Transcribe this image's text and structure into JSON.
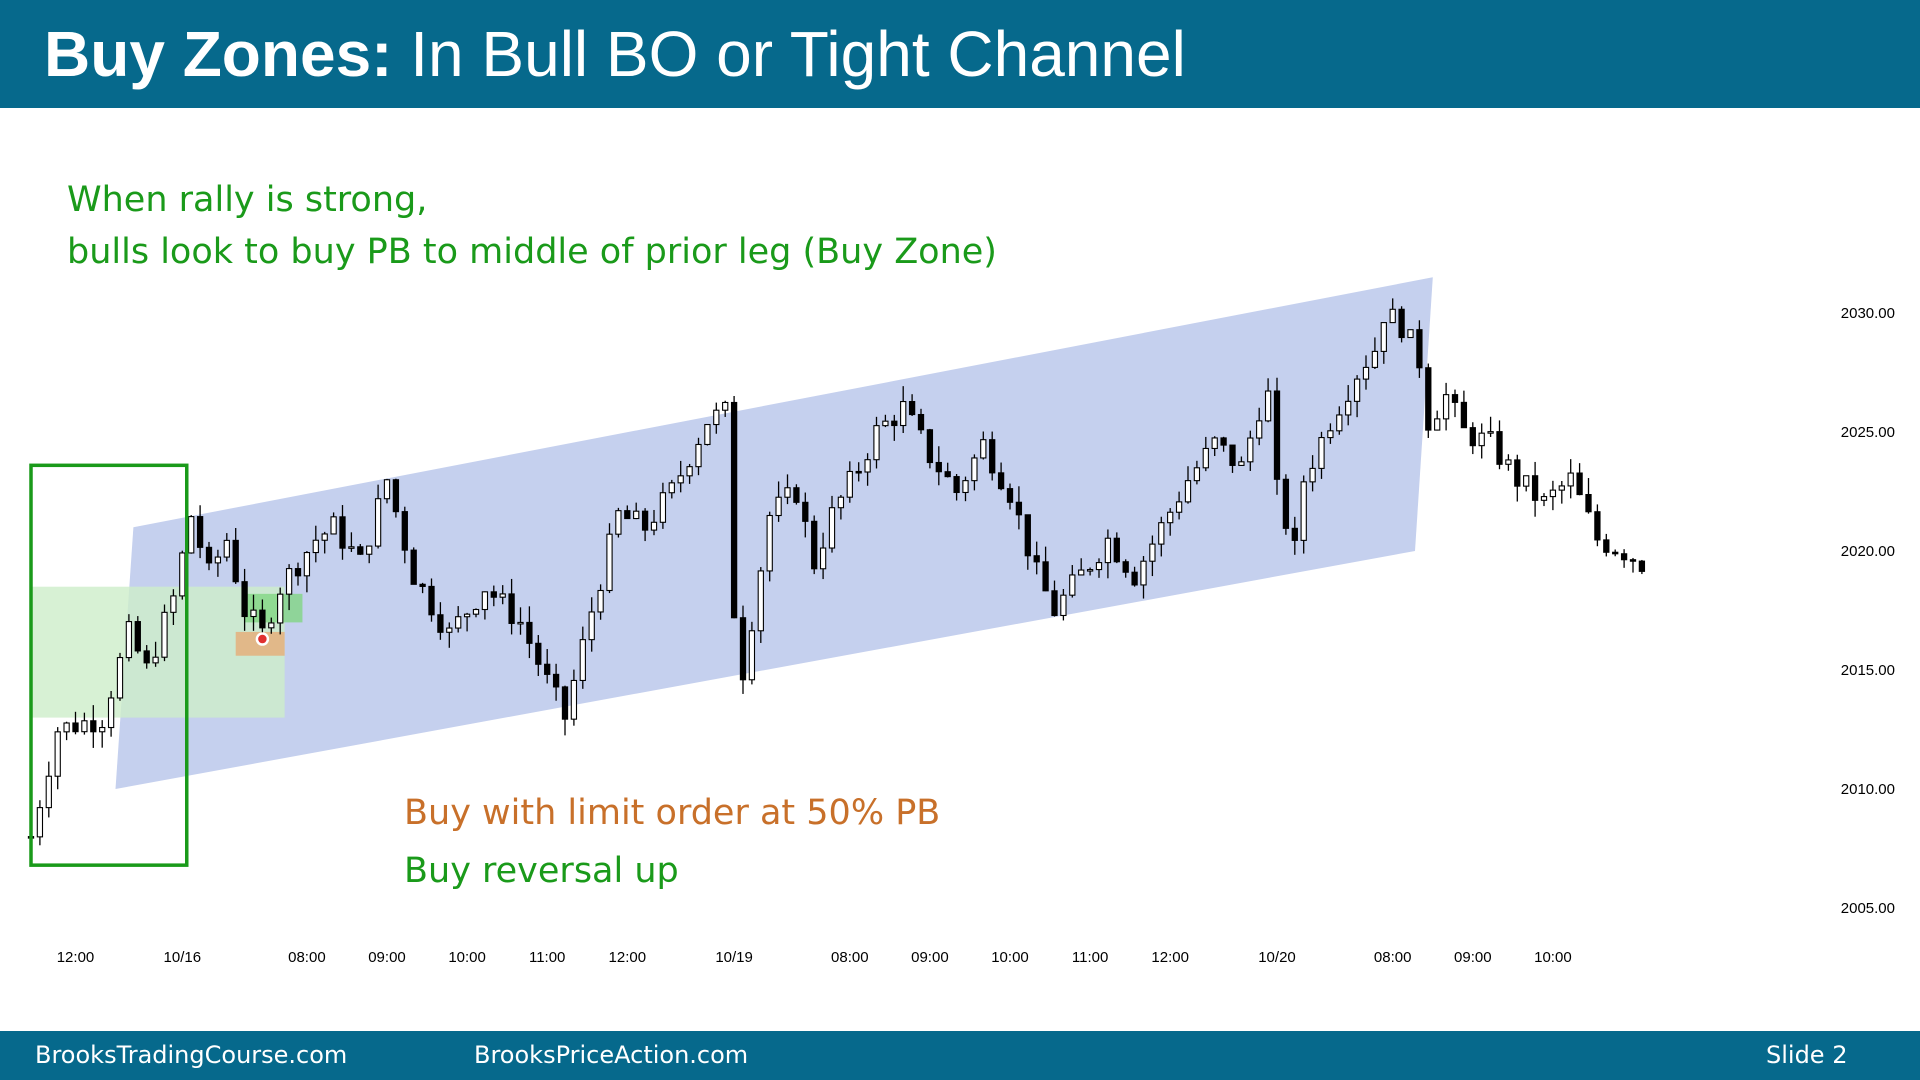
{
  "slide": {
    "title_bold": "Buy Zones:",
    "title_rest": " In Bull BO or Tight Channel",
    "note_line1": "When rally is strong,",
    "note_line2": "bulls look to buy PB to middle of prior leg (Buy Zone)",
    "note_buy_limit": "Buy with limit order at 50% PB",
    "note_buy_reversal": "Buy reversal up",
    "footer_left": "BrooksTradingCourse.com",
    "footer_center": "BrooksPriceAction.com",
    "footer_right": "Slide  2",
    "colors": {
      "header_bg": "#06698c",
      "green_text": "#1a9a1a",
      "orange_text": "#c8702a",
      "channel_fill": "#c5d0ee",
      "buy_zone_fill": "#cdeec9",
      "box_stroke": "#1a9a1a",
      "signal_fill": "#e8a870"
    }
  },
  "chart_data": {
    "type": "candlestick",
    "title": "",
    "xlabel": "",
    "ylabel": "",
    "ylim": [
      2003.2,
      2033.8
    ],
    "yticks": [
      2005,
      2010,
      2015,
      2020,
      2025,
      2030
    ],
    "ytick_labels": [
      "2005.00",
      "2010.00",
      "2015.00",
      "2020.00",
      "2025.00",
      "2030.00"
    ],
    "xticks": [
      {
        "label": "12:00",
        "bar": 5
      },
      {
        "label": "10/16",
        "bar": 17
      },
      {
        "label": "08:00",
        "bar": 31
      },
      {
        "label": "09:00",
        "bar": 40
      },
      {
        "label": "10:00",
        "bar": 49
      },
      {
        "label": "11:00",
        "bar": 58
      },
      {
        "label": "12:00",
        "bar": 67
      },
      {
        "label": "10/19",
        "bar": 79
      },
      {
        "label": "08:00",
        "bar": 92
      },
      {
        "label": "09:00",
        "bar": 101
      },
      {
        "label": "10:00",
        "bar": 110
      },
      {
        "label": "11:00",
        "bar": 119
      },
      {
        "label": "12:00",
        "bar": 128
      },
      {
        "label": "10/20",
        "bar": 140
      },
      {
        "label": "08:00",
        "bar": 153
      },
      {
        "label": "09:00",
        "bar": 162
      },
      {
        "label": "10:00",
        "bar": 171
      }
    ],
    "price_path": [
      [
        0,
        2008.0
      ],
      [
        3,
        2012.5
      ],
      [
        8,
        2013.0
      ],
      [
        11,
        2016.5
      ],
      [
        13,
        2015.0
      ],
      [
        16,
        2018.0
      ],
      [
        18,
        2021.5
      ],
      [
        20,
        2019.0
      ],
      [
        22,
        2020.5
      ],
      [
        24,
        2017.5
      ],
      [
        26,
        2016.5
      ],
      [
        28,
        2018.5
      ],
      [
        32,
        2020.5
      ],
      [
        34,
        2021.0
      ],
      [
        37,
        2019.5
      ],
      [
        40,
        2023.0
      ],
      [
        43,
        2019.0
      ],
      [
        47,
        2016.5
      ],
      [
        51,
        2018.5
      ],
      [
        55,
        2017.0
      ],
      [
        58,
        2014.5
      ],
      [
        60,
        2013.0
      ],
      [
        63,
        2017.5
      ],
      [
        66,
        2021.5
      ],
      [
        69,
        2021.0
      ],
      [
        72,
        2022.5
      ],
      [
        74,
        2024.0
      ],
      [
        76,
        2025.5
      ],
      [
        78,
        2025.8
      ],
      [
        79,
        2017.5
      ],
      [
        80,
        2015.0
      ],
      [
        83,
        2021.5
      ],
      [
        86,
        2022.5
      ],
      [
        88,
        2019.5
      ],
      [
        90,
        2021.5
      ],
      [
        93,
        2023.5
      ],
      [
        95,
        2025.0
      ],
      [
        98,
        2026.0
      ],
      [
        101,
        2024.0
      ],
      [
        104,
        2022.5
      ],
      [
        107,
        2024.5
      ],
      [
        110,
        2022.5
      ],
      [
        113,
        2019.0
      ],
      [
        115,
        2017.5
      ],
      [
        118,
        2019.0
      ],
      [
        121,
        2020.5
      ],
      [
        124,
        2019.0
      ],
      [
        127,
        2021.0
      ],
      [
        130,
        2023.0
      ],
      [
        133,
        2024.5
      ],
      [
        136,
        2023.5
      ],
      [
        138,
        2026.0
      ],
      [
        139,
        2026.5
      ],
      [
        140,
        2022.5
      ],
      [
        142,
        2020.0
      ],
      [
        143,
        2023.0
      ],
      [
        146,
        2025.5
      ],
      [
        149,
        2027.5
      ],
      [
        151,
        2028.5
      ],
      [
        152,
        2030.0
      ],
      [
        154,
        2029.5
      ],
      [
        156,
        2028.0
      ],
      [
        157,
        2025.5
      ],
      [
        159,
        2026.5
      ],
      [
        161,
        2025.0
      ],
      [
        164,
        2024.5
      ],
      [
        167,
        2023.0
      ],
      [
        170,
        2022.0
      ],
      [
        173,
        2023.0
      ],
      [
        176,
        2020.5
      ],
      [
        179,
        2020.0
      ],
      [
        181,
        2019.5
      ]
    ],
    "channel_polygon": [
      {
        "bar": 11.5,
        "price": 2021.0
      },
      {
        "bar": 157.5,
        "price": 2031.5
      },
      {
        "bar": 155.5,
        "price": 2020.0
      },
      {
        "bar": 9.5,
        "price": 2010.0
      }
    ],
    "buy_zone": {
      "from_bar": 0,
      "to_bar": 28.5,
      "from_price": 2013.0,
      "to_price": 2018.5
    },
    "pullback_box": {
      "from_bar": 24,
      "to_bar": 30.5,
      "from_price": 2017.0,
      "to_price": 2018.2
    },
    "signal_box": {
      "from_bar": 23,
      "to_bar": 28.5,
      "from_price": 2015.6,
      "to_price": 2016.6
    },
    "signal_marker": {
      "bar": 26,
      "price": 2016.3
    },
    "leg_box": {
      "from_bar": 0,
      "to_bar": 17.5,
      "from_price": 2006.8,
      "to_price": 2023.6
    }
  }
}
